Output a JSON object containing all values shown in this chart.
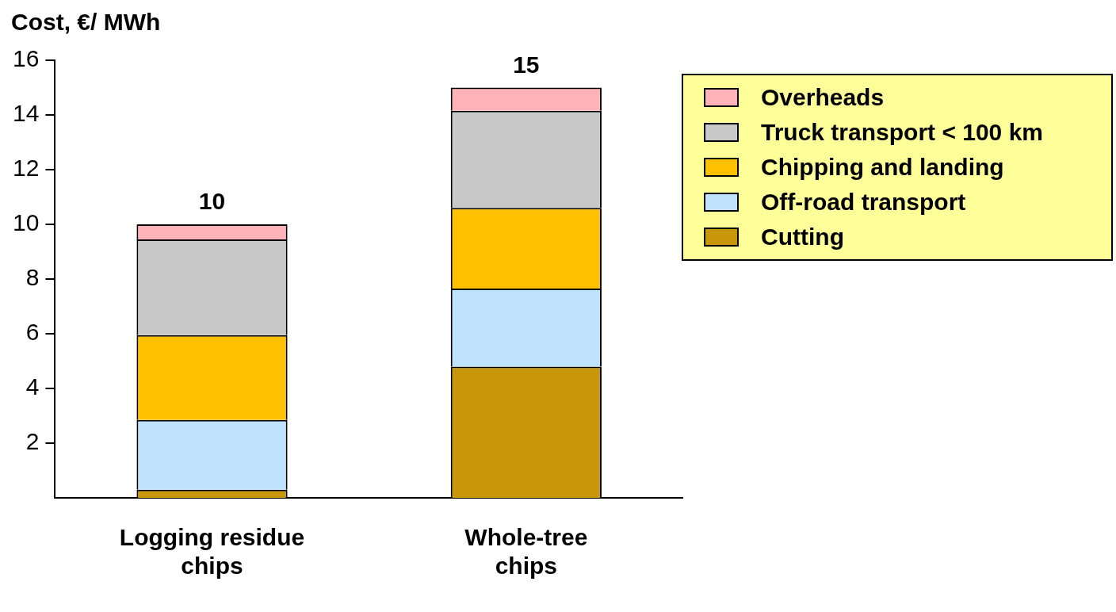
{
  "chart_data": {
    "type": "bar",
    "stacked": true,
    "ylabel": "Cost, €/ MWh",
    "categories": [
      "Logging residue chips",
      "Whole-tree chips"
    ],
    "series": [
      {
        "name": "Cutting",
        "color": "#c8960a",
        "values": [
          0.3,
          4.8
        ]
      },
      {
        "name": "Off-road transport",
        "color": "#bfe3ff",
        "values": [
          2.55,
          2.85
        ]
      },
      {
        "name": "Chipping and landing",
        "color": "#ffc000",
        "values": [
          3.1,
          2.95
        ]
      },
      {
        "name": "Truck transport < 100 km",
        "color": "#c8c8c8",
        "values": [
          3.5,
          3.55
        ]
      },
      {
        "name": "Overheads",
        "color": "#ffb3b8",
        "values": [
          0.55,
          0.85
        ]
      }
    ],
    "ylim": [
      0,
      16
    ],
    "yticks": [
      2,
      4,
      6,
      8,
      10,
      12,
      14,
      16
    ],
    "totals": [
      "10",
      "15"
    ],
    "grid": false,
    "legend": "top right"
  }
}
